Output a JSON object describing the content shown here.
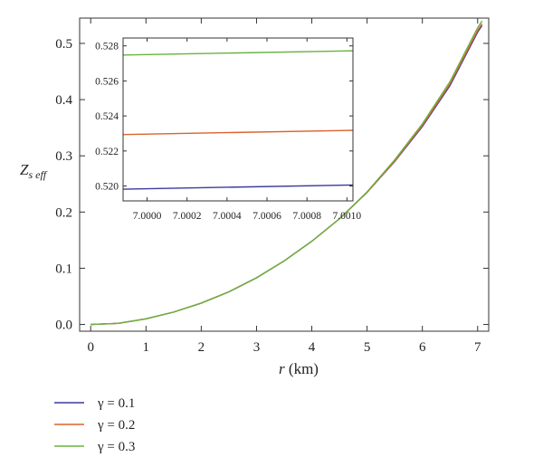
{
  "chart_data": [
    {
      "type": "line",
      "xlabel_var": "r",
      "xlabel_unit": " (km)",
      "ylabel_main": "Z",
      "ylabel_sub": "s eff",
      "xlim": [
        -0.2,
        7.2
      ],
      "ylim": [
        -0.012,
        0.545
      ],
      "xticks": [
        0,
        1,
        2,
        3,
        4,
        5,
        6,
        7
      ],
      "xtick_labels": [
        "0",
        "1",
        "2",
        "3",
        "4",
        "5",
        "6",
        "7"
      ],
      "yticks": [
        0.0,
        0.1,
        0.2,
        0.3,
        0.4,
        0.5
      ],
      "ytick_labels": [
        "0.0",
        "0.1",
        "0.2",
        "0.3",
        "0.4",
        "0.5"
      ],
      "x": [
        0,
        0.5,
        1,
        1.5,
        2,
        2.5,
        3,
        3.5,
        4,
        4.5,
        5,
        5.5,
        6,
        6.5,
        7,
        7.08
      ],
      "series": [
        {
          "name": "γ = 0.1",
          "color": "#3b3b9c",
          "values": [
            0.0,
            0.002,
            0.01,
            0.022,
            0.038,
            0.058,
            0.083,
            0.113,
            0.148,
            0.188,
            0.235,
            0.29,
            0.352,
            0.425,
            0.52,
            0.532
          ]
        },
        {
          "name": "γ = 0.2",
          "color": "#d9642c",
          "values": [
            0.0,
            0.002,
            0.01,
            0.022,
            0.038,
            0.058,
            0.083,
            0.113,
            0.148,
            0.188,
            0.235,
            0.291,
            0.354,
            0.428,
            0.523,
            0.535
          ]
        },
        {
          "name": "γ = 0.3",
          "color": "#6ab33e",
          "values": [
            0.0,
            0.002,
            0.01,
            0.022,
            0.038,
            0.058,
            0.083,
            0.113,
            0.148,
            0.188,
            0.236,
            0.293,
            0.357,
            0.432,
            0.528,
            0.54
          ]
        }
      ],
      "legend_position": "bottom-left"
    },
    {
      "type": "line",
      "role": "inset",
      "xlim": [
        6.99988,
        7.00103
      ],
      "ylim": [
        0.51915,
        0.52845
      ],
      "xticks": [
        7.0,
        7.0002,
        7.0004,
        7.0006,
        7.0008,
        7.001
      ],
      "xtick_labels": [
        "7.0000",
        "7.0002",
        "7.0004",
        "7.0006",
        "7.0008",
        "7.0010"
      ],
      "yticks": [
        0.52,
        0.522,
        0.524,
        0.526,
        0.528
      ],
      "ytick_labels": [
        "0.520",
        "0.522",
        "0.524",
        "0.526",
        "0.528"
      ],
      "x": [
        6.99988,
        7.00103
      ],
      "series": [
        {
          "name": "γ = 0.1",
          "color": "#3b3b9c",
          "values": [
            0.51982,
            0.52006
          ]
        },
        {
          "name": "γ = 0.2",
          "color": "#d9642c",
          "values": [
            0.52294,
            0.52318
          ]
        },
        {
          "name": "γ = 0.3",
          "color": "#6ab33e",
          "values": [
            0.52748,
            0.52772
          ]
        }
      ]
    }
  ]
}
